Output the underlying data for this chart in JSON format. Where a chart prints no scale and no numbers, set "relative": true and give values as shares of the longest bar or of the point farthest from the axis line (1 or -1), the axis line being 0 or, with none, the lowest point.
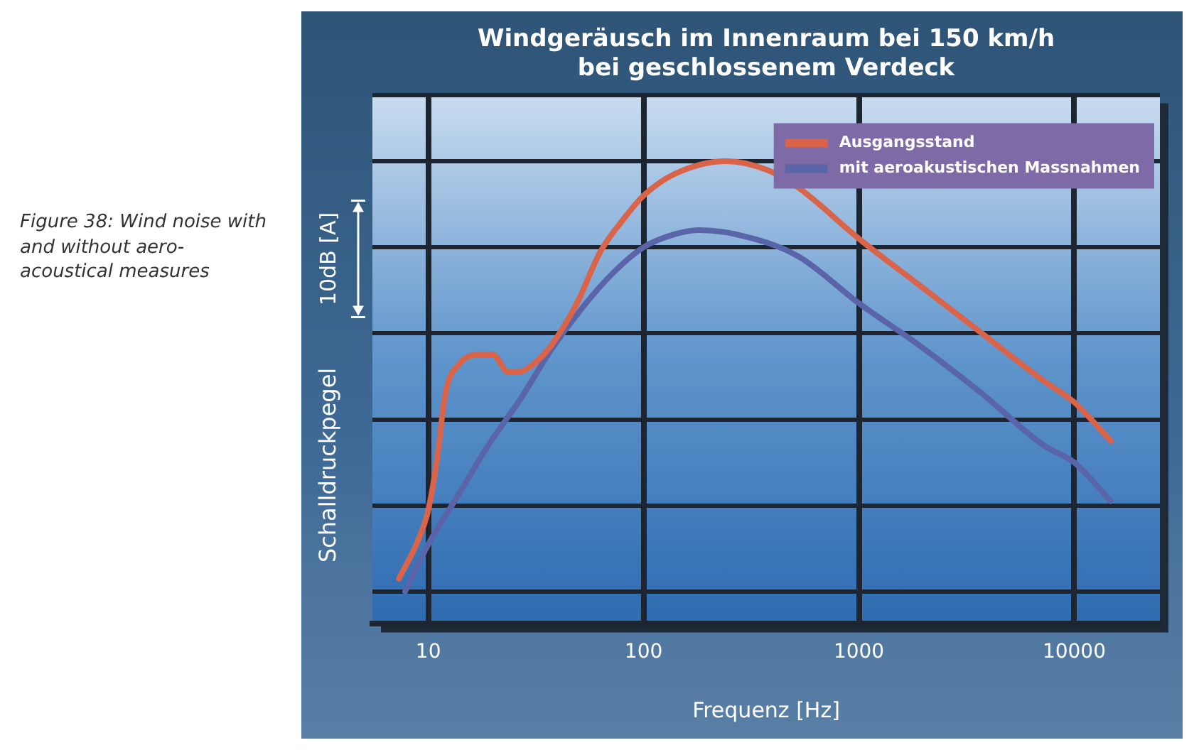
{
  "chart_data": {
    "type": "line",
    "title": "Windgeräusch im Innenraum bei 150 km/h\nbei geschlossenem Verdeck",
    "xlabel": "Frequenz [Hz]",
    "ylabel": "Schalldruckpegel",
    "relative": true,
    "log": "x",
    "xlim": [
      5.5,
      25000
    ],
    "xticks": [
      10,
      100,
      1000,
      10000
    ],
    "grid": true,
    "legend": "top right",
    "marker": "none",
    "line_style": "solid",
    "annotations": [
      "10dB [A]",
      "Figure 38: Wind noise with and without aero-acoustical measures"
    ],
    "series": [
      {
        "name": "Ausgangsstand",
        "color": "#d9644a",
        "x": [
          7.3,
          8.8,
          10,
          11,
          12,
          14,
          17,
          20,
          23.5,
          26,
          31,
          37,
          49,
          63,
          82,
          100,
          139,
          243,
          373,
          518,
          1000,
          1931,
          3728,
          7197,
          10000,
          14800
        ],
        "values": [
          0.03,
          0.11,
          0.19,
          0.31,
          0.46,
          0.53,
          0.55,
          0.55,
          0.51,
          0.51,
          0.53,
          0.57,
          0.67,
          0.79,
          0.87,
          0.92,
          0.97,
          1,
          0.98,
          0.94,
          0.82,
          0.71,
          0.6,
          0.49,
          0.44,
          0.35
        ]
      },
      {
        "name": "mit aeroakustischen Massnahmen",
        "color": "#5a64a8",
        "x": [
          7.8,
          10,
          14,
          19,
          27,
          37,
          52,
          72,
          100,
          139,
          181,
          268,
          518,
          1000,
          1931,
          3728,
          7197,
          10000,
          14800
        ],
        "values": [
          0,
          0.11,
          0.23,
          0.34,
          0.45,
          0.56,
          0.66,
          0.74,
          0.8,
          0.83,
          0.84,
          0.83,
          0.78,
          0.67,
          0.57,
          0.46,
          0.34,
          0.3,
          0.21
        ]
      }
    ]
  }
}
